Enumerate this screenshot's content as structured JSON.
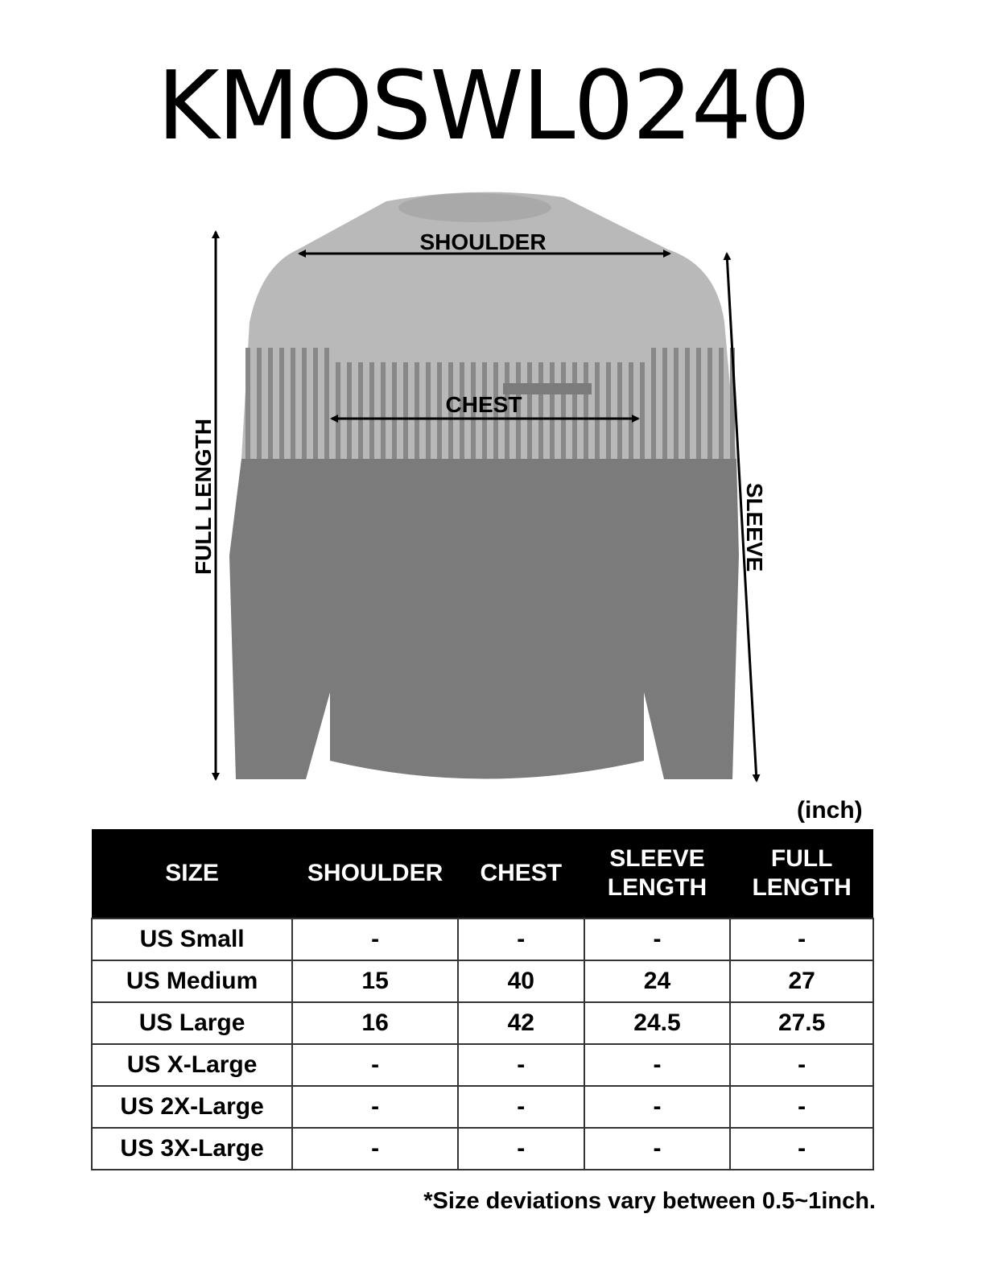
{
  "title": "KMOSWL0240",
  "diagram": {
    "labels": {
      "shoulder": "SHOULDER",
      "chest": "CHEST",
      "full_length": "FULL LENGTH",
      "sleeve": "SLEEVE"
    },
    "colors": {
      "upper": "#b9b9b9",
      "lower": "#7b7b7b",
      "stripe": "#888888"
    }
  },
  "unit": "(inch)",
  "table": {
    "headers": [
      [
        "SIZE"
      ],
      [
        "SHOULDER"
      ],
      [
        "CHEST"
      ],
      [
        "SLEEVE",
        "LENGTH"
      ],
      [
        "FULL",
        "LENGTH"
      ]
    ],
    "rows": [
      [
        "US Small",
        "-",
        "-",
        "-",
        "-"
      ],
      [
        "US Medium",
        "15",
        "40",
        "24",
        "27"
      ],
      [
        "US Large",
        "16",
        "42",
        "24.5",
        "27.5"
      ],
      [
        "US X-Large",
        "-",
        "-",
        "-",
        "-"
      ],
      [
        "US 2X-Large",
        "-",
        "-",
        "-",
        "-"
      ],
      [
        "US 3X-Large",
        "-",
        "-",
        "-",
        "-"
      ]
    ]
  },
  "note": "*Size deviations vary between 0.5~1inch."
}
